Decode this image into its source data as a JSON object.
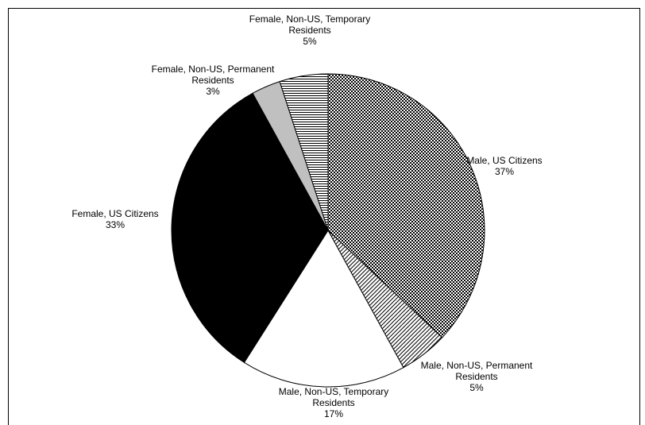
{
  "chart_data": {
    "type": "pie",
    "categories": [
      "Male, US Citizens",
      "Male, Non-US, Permanent Residents",
      "Male, Non-US, Temporary Residents",
      "Female, US Citizens",
      "Female, Non-US, Permanent Residents",
      "Female, Non-US, Temporary Residents"
    ],
    "values": [
      37,
      5,
      17,
      33,
      3,
      5
    ],
    "value_labels": [
      "37%",
      "5%",
      "17%",
      "33%",
      "3%",
      "5%"
    ],
    "fills": [
      "dots",
      "diagonal-hatch",
      "white",
      "black",
      "silver",
      "horizontal-lines"
    ]
  }
}
